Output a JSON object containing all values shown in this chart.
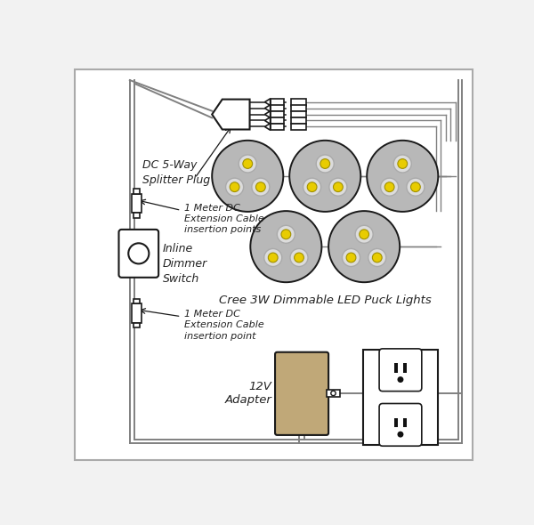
{
  "bg_color": "#f2f2f2",
  "wire_color": "#808080",
  "outline_color": "#1a1a1a",
  "puck_fill": "#b8b8b8",
  "led_white": "#dcdcdc",
  "led_yellow": "#e8cc00",
  "adapter_fill": "#c0a878",
  "outlet_fill": "#ffffff",
  "text_color": "#222222",
  "splitter_label": "DC 5-Way\nSplitter Plug",
  "ext_cable_label1": "1 Meter DC\nExtension Cable\ninsertion points",
  "ext_cable_label2": "1 Meter DC\nExtension Cable\ninsertion point",
  "dimmer_label": "Inline\nDimmer\nSwitch",
  "puck_label": "Cree 3W Dimmable LED Puck Lights",
  "adapter_label": "12V\nAdapter"
}
